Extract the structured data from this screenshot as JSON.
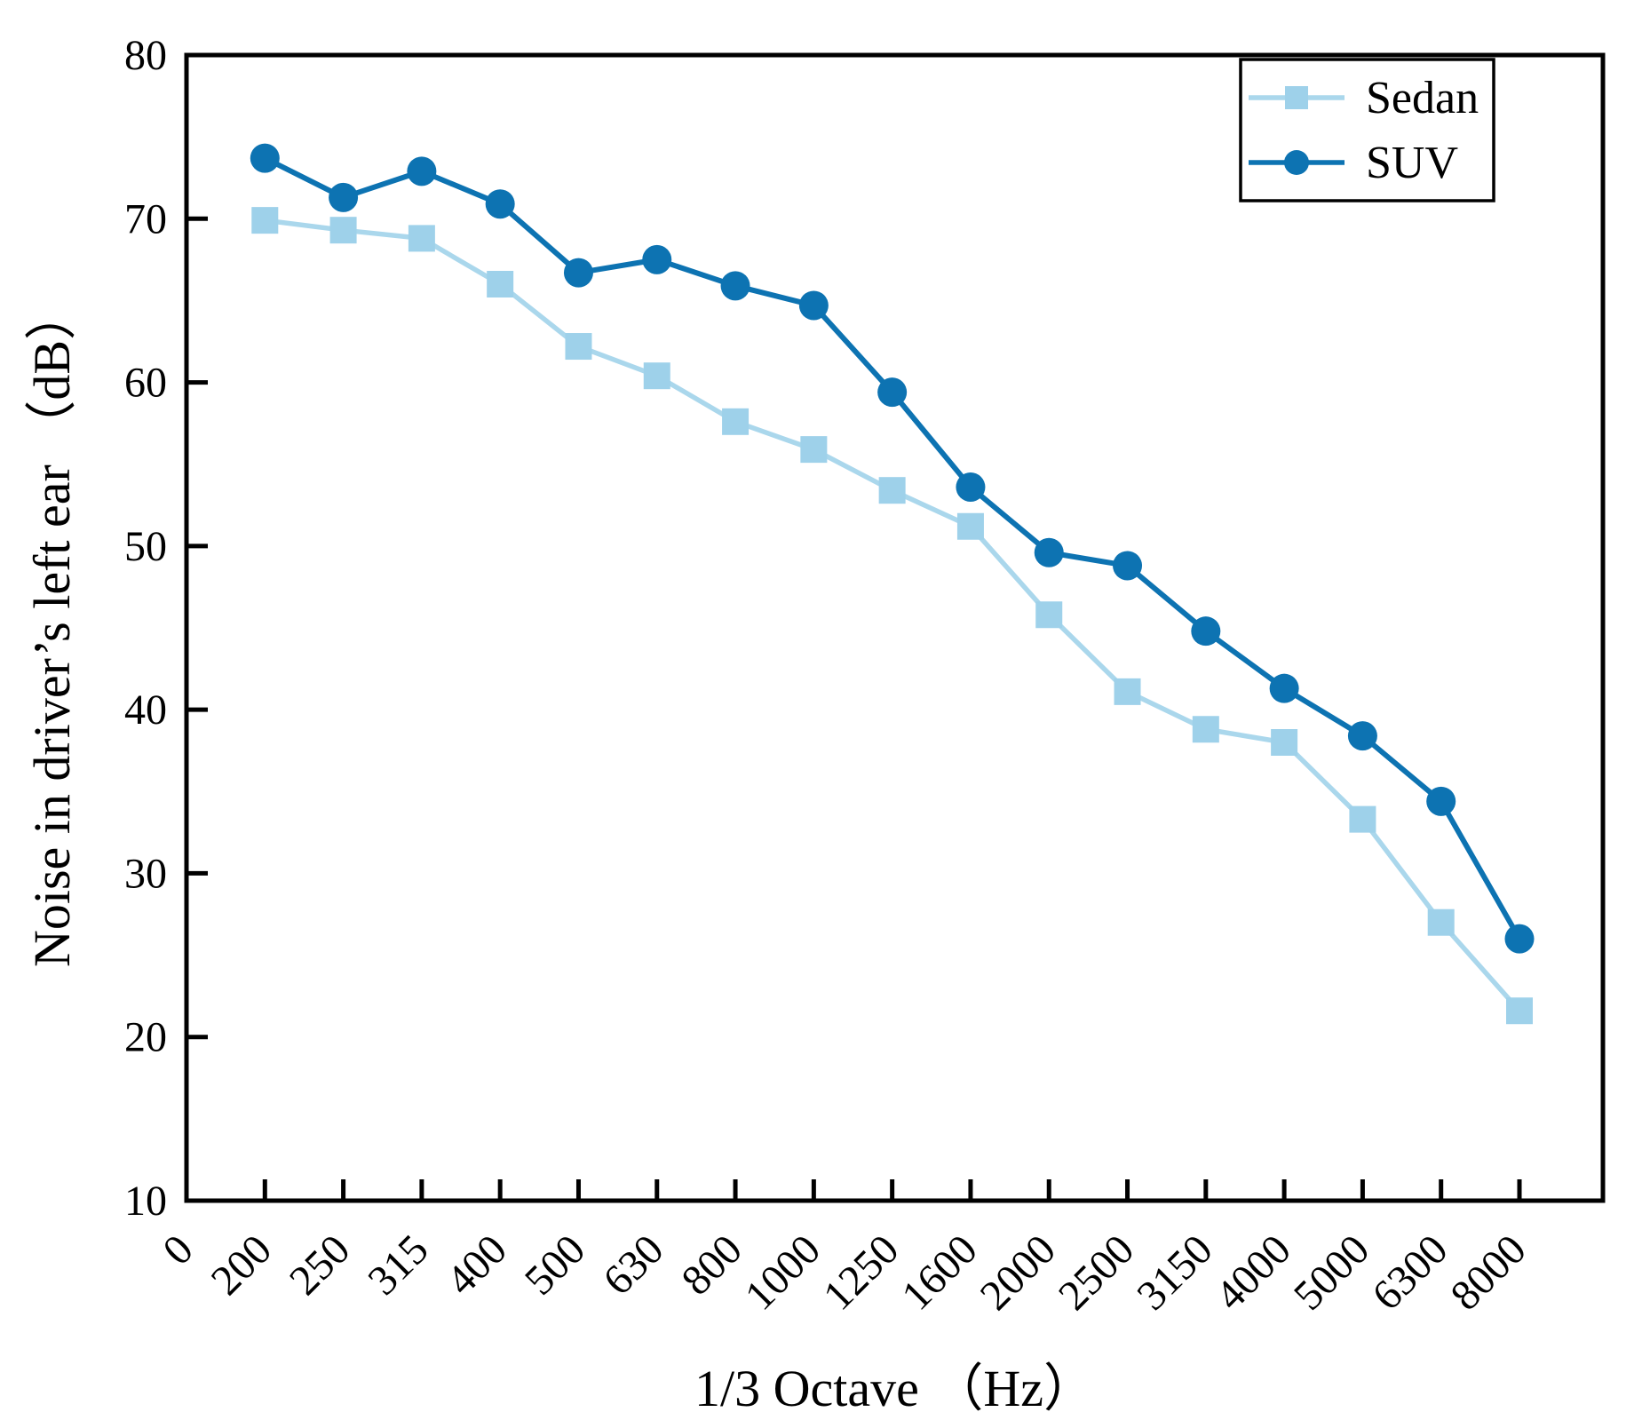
{
  "figure": {
    "background": "#ffffff",
    "axis_color": "#000000"
  },
  "chart_data": {
    "type": "line",
    "title": "",
    "xlabel": "1/3 Octave （Hz）",
    "ylabel": "Noise in driver’s left ear （dB）",
    "x_tick_labels": [
      "0",
      "200",
      "250",
      "315",
      "400",
      "500",
      "630",
      "800",
      "1000",
      "1250",
      "1600",
      "2000",
      "2500",
      "3150",
      "4000",
      "5000",
      "6300",
      "8000"
    ],
    "categories": [
      "200",
      "250",
      "315",
      "400",
      "500",
      "630",
      "800",
      "1000",
      "1250",
      "1600",
      "2000",
      "2500",
      "3150",
      "4000",
      "5000",
      "6300",
      "8000"
    ],
    "ylim": [
      10,
      80
    ],
    "y_ticks": [
      10,
      20,
      30,
      40,
      50,
      60,
      70,
      80
    ],
    "grid": false,
    "legend": {
      "position": "top-right",
      "entries": [
        {
          "label": "Sedan",
          "marker": "square"
        },
        {
          "label": "SUV",
          "marker": "circle"
        }
      ]
    },
    "series": [
      {
        "name": "Sedan",
        "marker": "square",
        "marker_color": "#9ed1ea",
        "line_color": "#aad7ec",
        "values": [
          69.9,
          69.3,
          68.8,
          66.0,
          62.2,
          60.4,
          57.6,
          55.9,
          53.4,
          51.2,
          45.8,
          41.1,
          38.8,
          38.0,
          33.3,
          27.0,
          21.6
        ]
      },
      {
        "name": "SUV",
        "marker": "circle",
        "marker_color": "#0d73b2",
        "line_color": "#0d73b2",
        "values": [
          73.7,
          71.3,
          72.9,
          70.9,
          66.7,
          67.5,
          65.9,
          64.7,
          59.4,
          53.6,
          49.6,
          48.8,
          44.8,
          41.3,
          38.4,
          34.4,
          26.0
        ]
      }
    ]
  }
}
